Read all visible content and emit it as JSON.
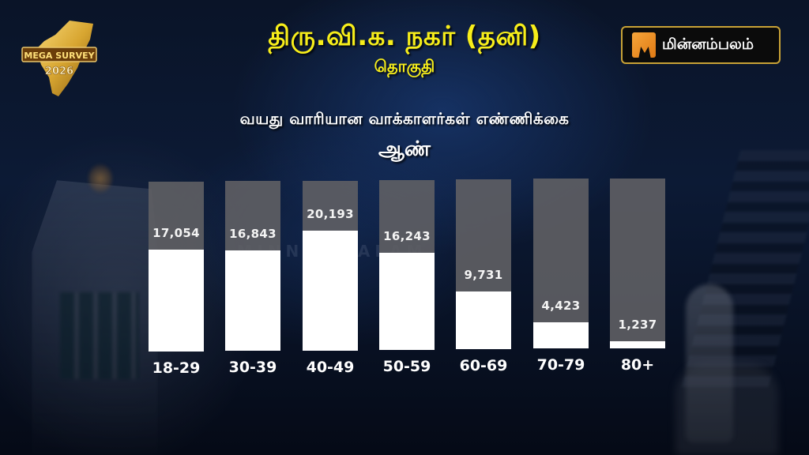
{
  "header": {
    "title": "திரு.வி.க. நகர் (தனி)",
    "title_sub": "தொகுதி",
    "subtitle": "வயது வாரியான வாக்காளர்கள் எண்ணிக்கை",
    "gender_label": "ஆண்",
    "title_color": "#f7ee1a"
  },
  "logos": {
    "survey_badge": {
      "line1": "MEGA SURVEY",
      "line2": "2026"
    },
    "brand": {
      "name": "மின்னம்பலம்",
      "accent": "#e88a1f",
      "border": "#c8a236"
    }
  },
  "watermark": "MINNAMBALAM",
  "chart_data": {
    "type": "bar",
    "title": "வயது வாரியான வாக்காளர்கள் எண்ணிக்கை — ஆண்",
    "xlabel": "",
    "ylabel": "",
    "categories": [
      "18-29",
      "30-39",
      "40-49",
      "50-59",
      "60-69",
      "70-79",
      "80+"
    ],
    "values": [
      17054,
      16843,
      20193,
      16243,
      9731,
      4423,
      1237
    ],
    "value_labels": [
      "17,054",
      "16,843",
      "20,193",
      "16,243",
      "9,731",
      "4,423",
      "1,237"
    ],
    "ylim": [
      0,
      28500
    ],
    "grid": false,
    "legend": "none",
    "colors": {
      "fill": "#ffffff",
      "track": "#5f5f64",
      "label": "#ffffff"
    }
  }
}
